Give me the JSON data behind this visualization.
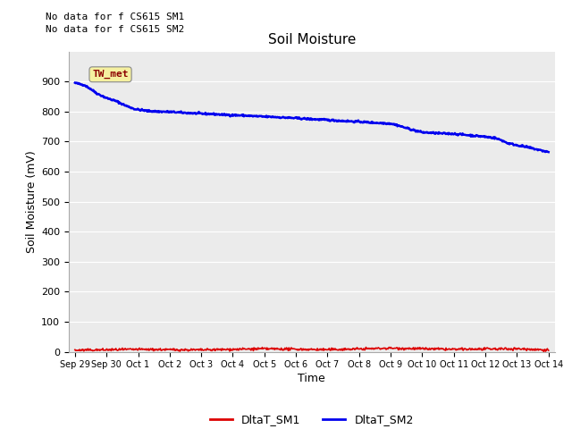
{
  "title": "Soil Moisture",
  "xlabel": "Time",
  "ylabel": "Soil Moisture (mV)",
  "ylim": [
    0,
    1000
  ],
  "yticks": [
    0,
    100,
    200,
    300,
    400,
    500,
    600,
    700,
    800,
    900
  ],
  "xtick_labels": [
    "Sep 29",
    "Sep 30",
    "Oct 1",
    "Oct 2",
    "Oct 3",
    "Oct 4",
    "Oct 5",
    "Oct 6",
    "Oct 7",
    "Oct 8",
    "Oct 9",
    "Oct 10",
    "Oct 11",
    "Oct 12",
    "Oct 13",
    "Oct 14"
  ],
  "no_data_text1": "No data for f CS615 SM1",
  "no_data_text2": "No data for f CS615 SM2",
  "annotation_box": "TW_met",
  "sm2_color": "#0000ee",
  "sm1_color": "#dd0000",
  "plot_bg_color": "#ebebeb",
  "fig_bg_color": "#ffffff",
  "grid_color": "#ffffff",
  "legend_sm1": "DltaT_SM1",
  "legend_sm2": "DltaT_SM2",
  "sm2_points_x": [
    0,
    0.1,
    0.3,
    0.5,
    0.7,
    1.0,
    1.3,
    1.6,
    1.9,
    2.1,
    2.3,
    2.6,
    3.0,
    3.3,
    3.6,
    4.0,
    4.3,
    4.6,
    5.0,
    5.3,
    5.6,
    6.0,
    6.3,
    6.6,
    7.0,
    7.3,
    7.6,
    8.0,
    8.3,
    8.6,
    9.0,
    9.3,
    9.6,
    10.0,
    10.2,
    10.4,
    10.6,
    10.8,
    11.0,
    11.3,
    11.6,
    12.0,
    12.2,
    12.4,
    12.6,
    12.8,
    13.0,
    13.3,
    13.5,
    13.7,
    14.0,
    14.3,
    14.5,
    14.7,
    15.0
  ],
  "sm2_points_y": [
    895,
    893,
    888,
    875,
    860,
    845,
    835,
    820,
    808,
    805,
    802,
    800,
    799,
    797,
    795,
    793,
    792,
    790,
    788,
    787,
    785,
    783,
    782,
    780,
    778,
    776,
    774,
    772,
    770,
    768,
    766,
    764,
    762,
    760,
    755,
    748,
    742,
    736,
    731,
    729,
    727,
    726,
    724,
    722,
    720,
    718,
    716,
    712,
    705,
    695,
    688,
    682,
    677,
    672,
    665
  ],
  "sm1_points_x": [
    0,
    2,
    4,
    6,
    8,
    10,
    12,
    14,
    15
  ],
  "sm1_points_y": [
    5,
    8,
    6,
    10,
    7,
    12,
    8,
    10,
    6
  ]
}
